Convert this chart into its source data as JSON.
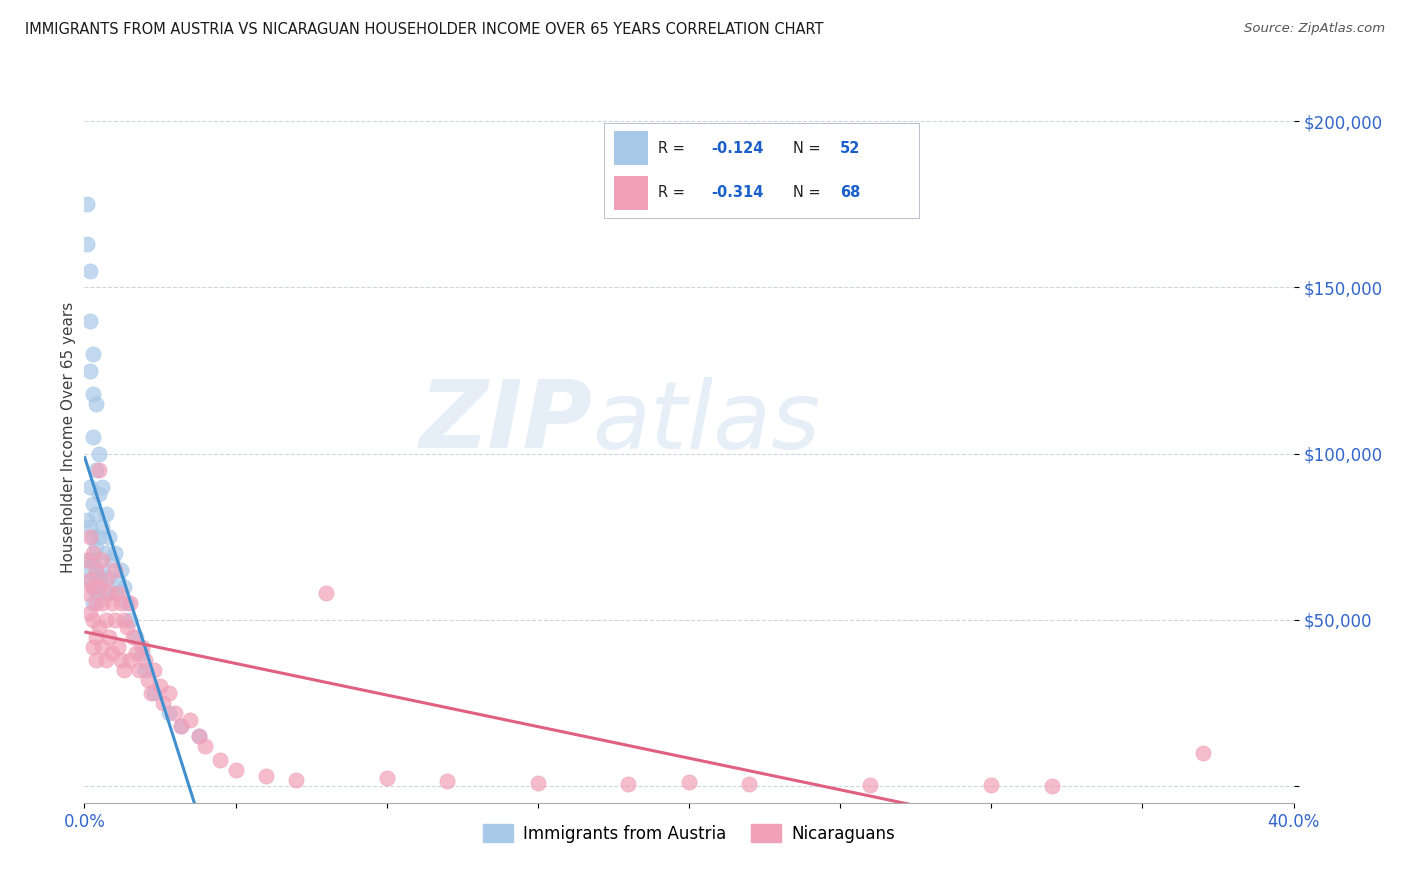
{
  "title": "IMMIGRANTS FROM AUSTRIA VS NICARAGUAN HOUSEHOLDER INCOME OVER 65 YEARS CORRELATION CHART",
  "source": "Source: ZipAtlas.com",
  "ylabel": "Householder Income Over 65 years",
  "xlim": [
    0.0,
    0.4
  ],
  "ylim": [
    -5000,
    215000
  ],
  "color_austria": "#a8c8e8",
  "color_nicaragua": "#f0a0b8",
  "color_austria_line": "#4090d0",
  "color_nicaragua_line": "#e06080",
  "color_austria_dashed": "#90b8d8",
  "watermark_zip": "ZIP",
  "watermark_atlas": "atlas",
  "austria_x": [
    0.001,
    0.001,
    0.001,
    0.001,
    0.002,
    0.002,
    0.002,
    0.002,
    0.002,
    0.002,
    0.002,
    0.003,
    0.003,
    0.003,
    0.003,
    0.003,
    0.003,
    0.003,
    0.003,
    0.004,
    0.004,
    0.004,
    0.004,
    0.004,
    0.004,
    0.005,
    0.005,
    0.005,
    0.005,
    0.006,
    0.006,
    0.006,
    0.007,
    0.007,
    0.007,
    0.008,
    0.008,
    0.009,
    0.01,
    0.01,
    0.011,
    0.012,
    0.013,
    0.014,
    0.015,
    0.017,
    0.019,
    0.02,
    0.023,
    0.028,
    0.032,
    0.038
  ],
  "austria_y": [
    175000,
    163000,
    80000,
    65000,
    155000,
    140000,
    125000,
    90000,
    78000,
    68000,
    62000,
    130000,
    118000,
    105000,
    85000,
    75000,
    68000,
    60000,
    55000,
    115000,
    95000,
    82000,
    72000,
    64000,
    58000,
    100000,
    88000,
    75000,
    62000,
    90000,
    78000,
    65000,
    82000,
    70000,
    58000,
    75000,
    63000,
    68000,
    70000,
    58000,
    62000,
    65000,
    60000,
    55000,
    50000,
    45000,
    40000,
    35000,
    28000,
    22000,
    18000,
    15000
  ],
  "nicaragua_x": [
    0.001,
    0.001,
    0.002,
    0.002,
    0.002,
    0.003,
    0.003,
    0.003,
    0.003,
    0.004,
    0.004,
    0.004,
    0.004,
    0.005,
    0.005,
    0.005,
    0.006,
    0.006,
    0.006,
    0.007,
    0.007,
    0.007,
    0.008,
    0.008,
    0.009,
    0.009,
    0.01,
    0.01,
    0.011,
    0.011,
    0.012,
    0.012,
    0.013,
    0.013,
    0.014,
    0.015,
    0.015,
    0.016,
    0.017,
    0.018,
    0.019,
    0.02,
    0.021,
    0.022,
    0.023,
    0.025,
    0.026,
    0.028,
    0.03,
    0.032,
    0.035,
    0.038,
    0.04,
    0.045,
    0.05,
    0.06,
    0.07,
    0.08,
    0.1,
    0.12,
    0.15,
    0.18,
    0.2,
    0.22,
    0.26,
    0.3,
    0.32,
    0.37
  ],
  "nicaragua_y": [
    68000,
    58000,
    75000,
    62000,
    52000,
    70000,
    60000,
    50000,
    42000,
    65000,
    55000,
    45000,
    38000,
    95000,
    60000,
    48000,
    68000,
    55000,
    42000,
    62000,
    50000,
    38000,
    58000,
    45000,
    55000,
    40000,
    65000,
    50000,
    58000,
    42000,
    55000,
    38000,
    50000,
    35000,
    48000,
    55000,
    38000,
    45000,
    40000,
    35000,
    42000,
    38000,
    32000,
    28000,
    35000,
    30000,
    25000,
    28000,
    22000,
    18000,
    20000,
    15000,
    12000,
    8000,
    5000,
    3000,
    2000,
    58000,
    2500,
    1500,
    1000,
    800,
    1200,
    600,
    400,
    300,
    200,
    10000
  ]
}
